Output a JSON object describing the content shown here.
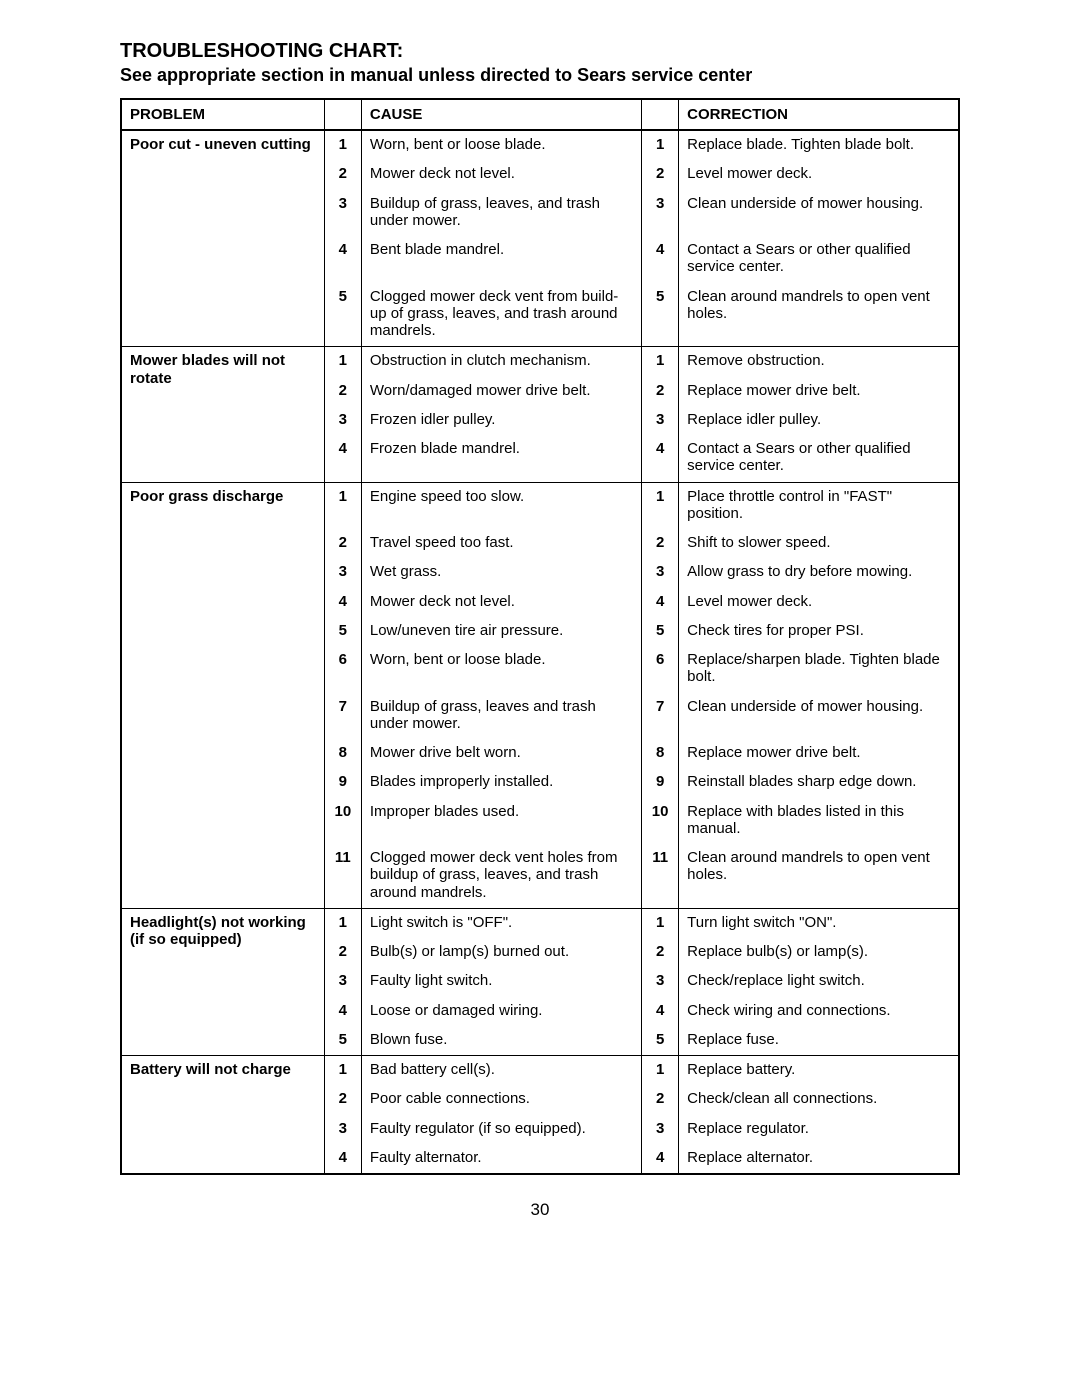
{
  "title": "TROUBLESHOOTING CHART:",
  "subtitle": "See appropriate section in manual unless directed to Sears service center",
  "headers": {
    "problem": "PROBLEM",
    "cause": "CAUSE",
    "correction": "CORRECTION"
  },
  "sections": [
    {
      "problem": "Poor cut - uneven cutting",
      "rows": [
        {
          "n": "1",
          "cause": "Worn, bent or loose blade.",
          "correction": "Replace blade. Tighten blade bolt."
        },
        {
          "n": "2",
          "cause": "Mower deck not level.",
          "correction": "Level mower deck."
        },
        {
          "n": "3",
          "cause": "Buildup of grass, leaves, and trash under mower.",
          "correction": "Clean underside of mower housing."
        },
        {
          "n": "4",
          "cause": "Bent blade mandrel.",
          "correction": "Contact a Sears or other qualified service center."
        },
        {
          "n": "5",
          "cause": "Clogged mower deck vent from build-up of grass, leaves, and trash around mandrels.",
          "correction": "Clean around mandrels to open vent holes."
        }
      ]
    },
    {
      "problem": "Mower blades will not rotate",
      "rows": [
        {
          "n": "1",
          "cause": "Obstruction in clutch mechanism.",
          "correction": "Remove obstruction."
        },
        {
          "n": "2",
          "cause": "Worn/damaged mower drive belt.",
          "correction": "Replace mower drive belt."
        },
        {
          "n": "3",
          "cause": "Frozen idler pulley.",
          "correction": "Replace idler pulley."
        },
        {
          "n": "4",
          "cause": "Frozen blade mandrel.",
          "correction": "Contact a Sears or other qualified service center."
        }
      ]
    },
    {
      "problem": "Poor grass discharge",
      "rows": [
        {
          "n": "1",
          "cause": "Engine speed too slow.",
          "correction": "Place throttle control in \"FAST\" position."
        },
        {
          "n": "2",
          "cause": "Travel speed too fast.",
          "correction": "Shift to slower speed."
        },
        {
          "n": "3",
          "cause": "Wet grass.",
          "correction": "Allow grass to dry before mowing."
        },
        {
          "n": "4",
          "cause": "Mower deck not level.",
          "correction": "Level mower deck."
        },
        {
          "n": "5",
          "cause": "Low/uneven tire air pressure.",
          "correction": "Check tires for proper PSI."
        },
        {
          "n": "6",
          "cause": "Worn, bent or loose blade.",
          "correction": "Replace/sharpen blade. Tighten blade bolt."
        },
        {
          "n": "7",
          "cause": "Buildup of grass, leaves and trash under mower.",
          "correction": "Clean underside of mower housing."
        },
        {
          "n": "8",
          "cause": "Mower drive belt worn.",
          "correction": "Replace mower drive belt."
        },
        {
          "n": "9",
          "cause": "Blades improperly installed.",
          "correction": "Reinstall blades sharp edge down."
        },
        {
          "n": "10",
          "cause": "Improper blades used.",
          "correction": "Replace with blades listed in this manual."
        },
        {
          "n": "11",
          "cause": "Clogged mower deck vent holes from buildup of grass, leaves, and trash around mandrels.",
          "correction": "Clean around mandrels to open vent holes."
        }
      ]
    },
    {
      "problem": "Headlight(s) not working\n(if so equipped)",
      "rows": [
        {
          "n": "1",
          "cause": "Light switch is \"OFF\".",
          "correction": "Turn light switch \"ON\"."
        },
        {
          "n": "2",
          "cause": "Bulb(s) or lamp(s) burned out.",
          "correction": "Replace bulb(s) or lamp(s)."
        },
        {
          "n": "3",
          "cause": "Faulty light switch.",
          "correction": "Check/replace light switch."
        },
        {
          "n": "4",
          "cause": "Loose or damaged wiring.",
          "correction": "Check wiring and connections."
        },
        {
          "n": "5",
          "cause": "Blown fuse.",
          "correction": "Replace fuse."
        }
      ]
    },
    {
      "problem": "Battery will not charge",
      "rows": [
        {
          "n": "1",
          "cause": "Bad battery cell(s).",
          "correction": "Replace battery."
        },
        {
          "n": "2",
          "cause": "Poor cable connections.",
          "correction": "Check/clean all connections."
        },
        {
          "n": "3",
          "cause": "Faulty regulator (if so equipped).",
          "correction": "Replace regulator."
        },
        {
          "n": "4",
          "cause": "Faulty alternator.",
          "correction": "Replace alternator."
        }
      ]
    }
  ],
  "pageNumber": "30"
}
